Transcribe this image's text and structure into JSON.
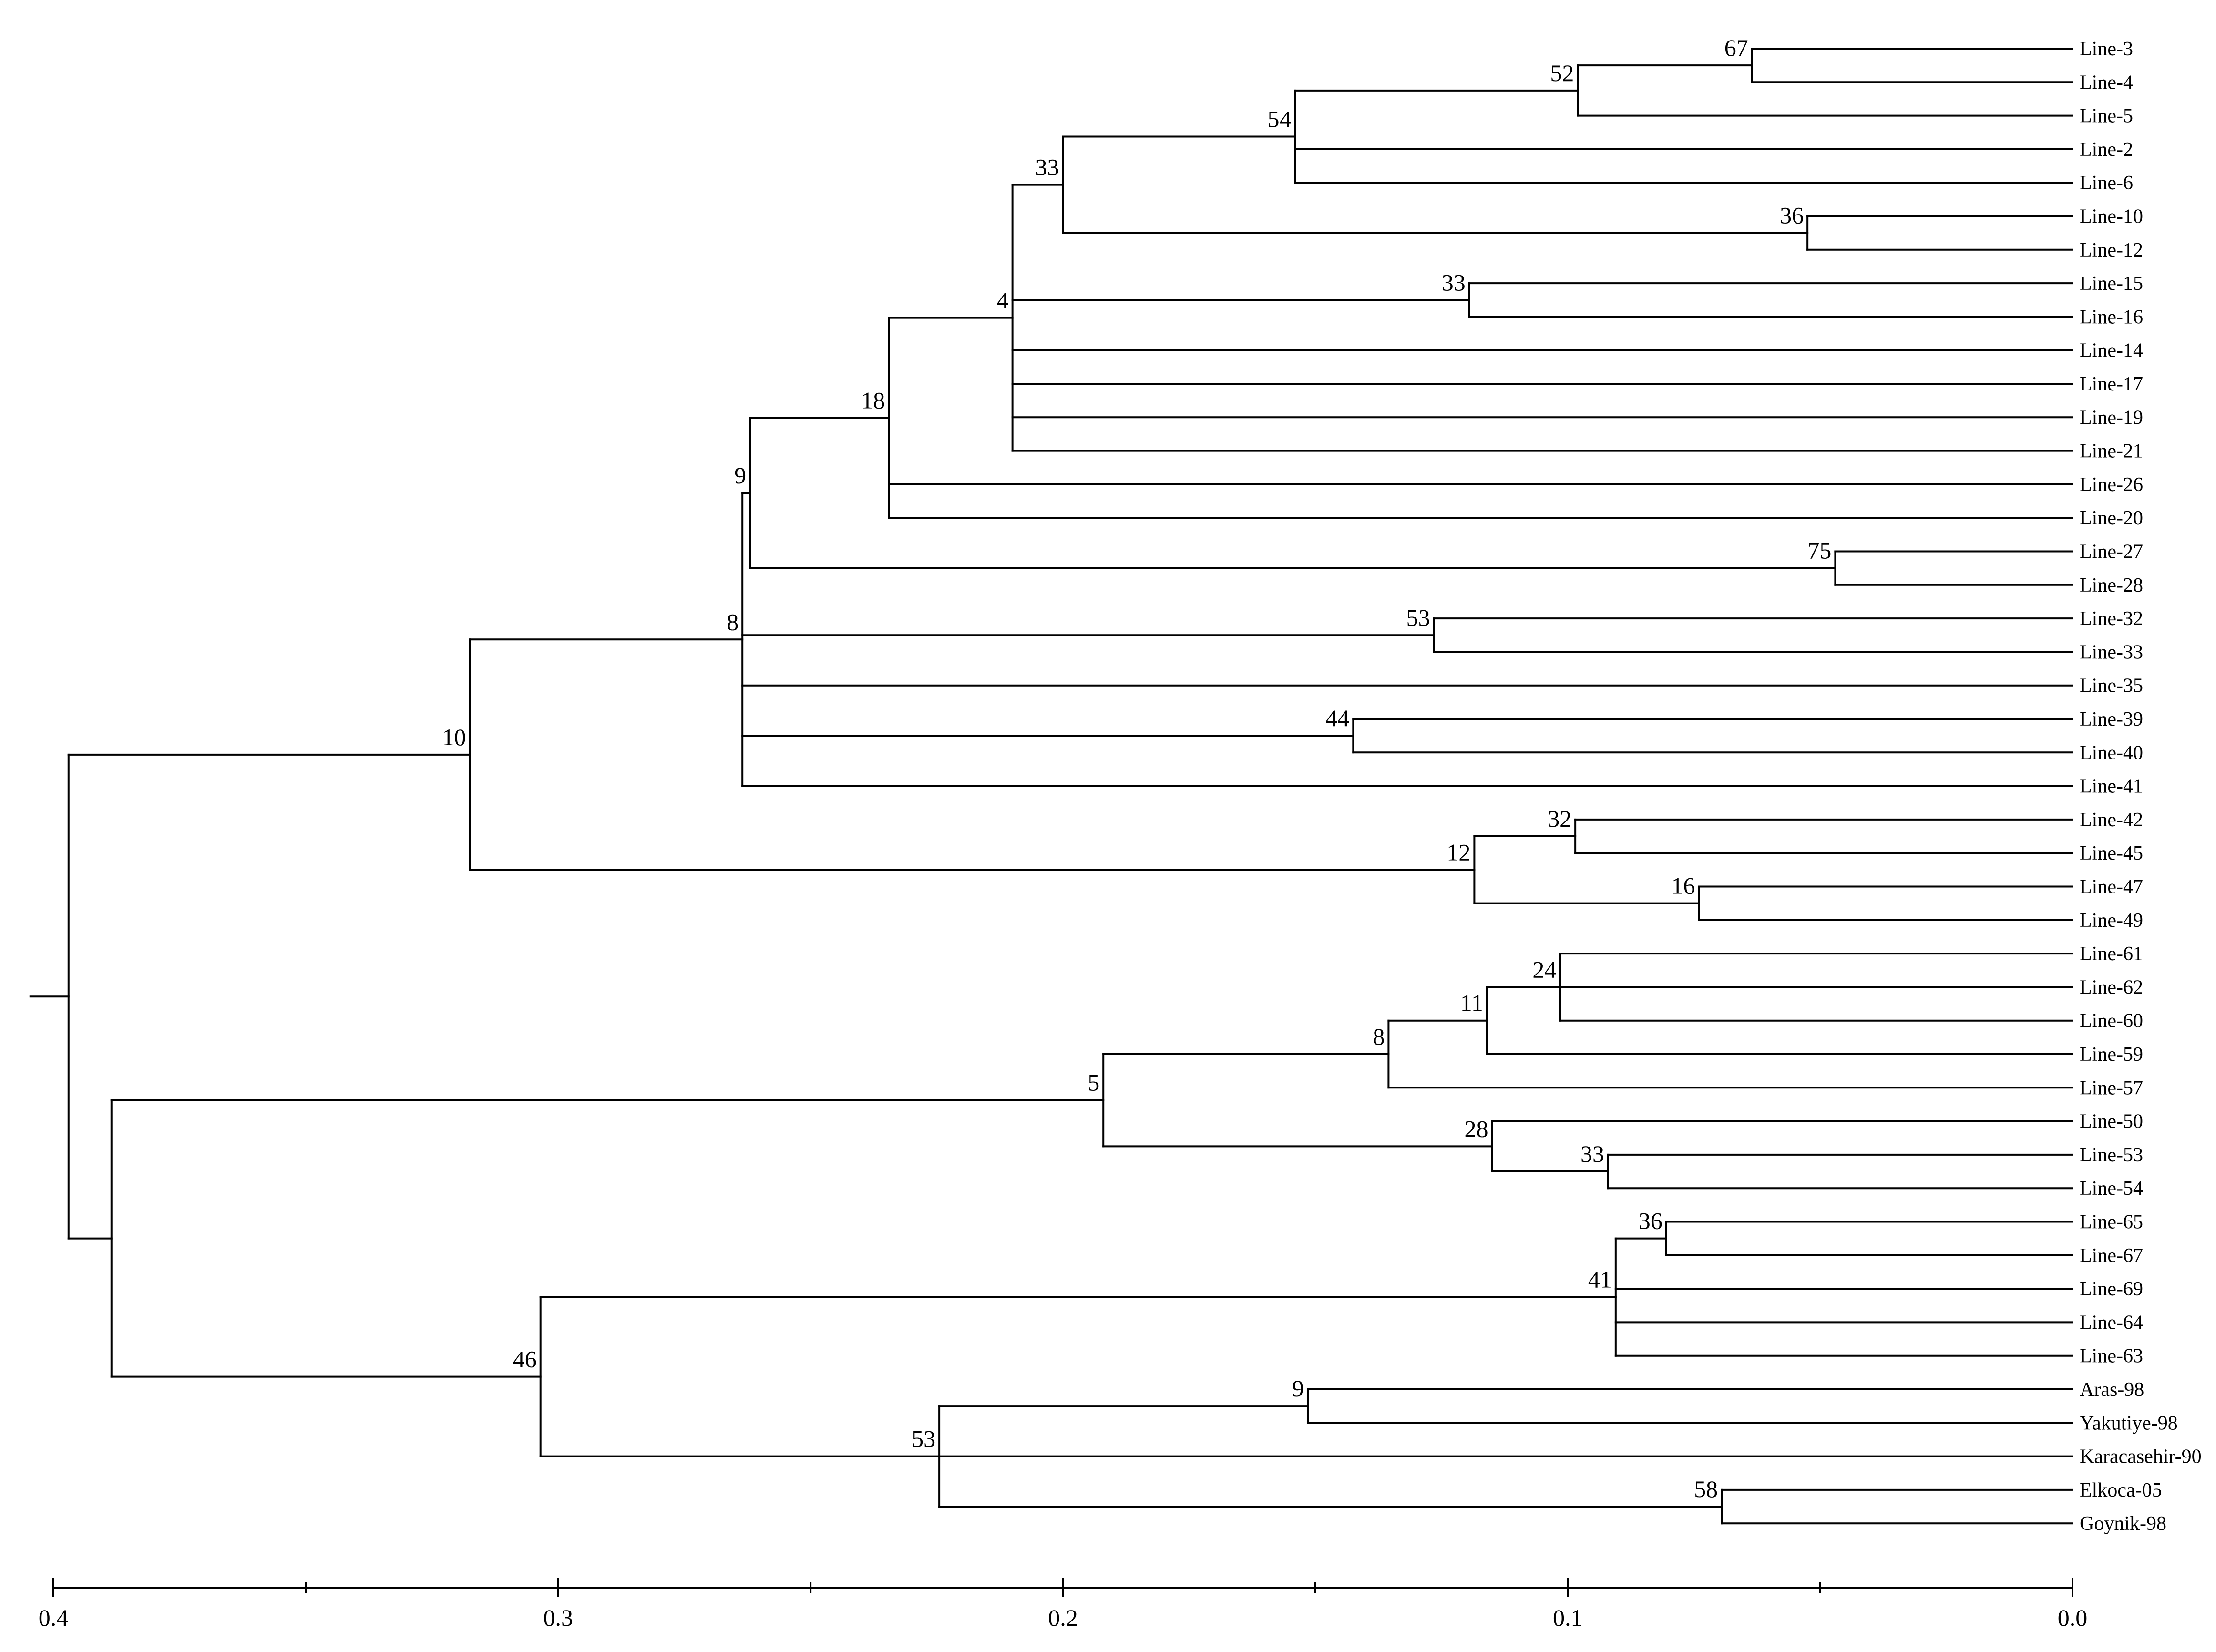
{
  "leaves": [
    "Line-3",
    "Line-4",
    "Line-5",
    "Line-2",
    "Line-6",
    "Line-10",
    "Line-12",
    "Line-15",
    "Line-16",
    "Line-14",
    "Line-17",
    "Line-19",
    "Line-21",
    "Line-26",
    "Line-20",
    "Line-27",
    "Line-28",
    "Line-32",
    "Line-33",
    "Line-35",
    "Line-39",
    "Line-40",
    "Line-41",
    "Line-42",
    "Line-45",
    "Line-47",
    "Line-49",
    "Line-61",
    "Line-62",
    "Line-60",
    "Line-59",
    "Line-57",
    "Line-50",
    "Line-53",
    "Line-54",
    "Line-65",
    "Line-67",
    "Line-69",
    "Line-64",
    "Line-63",
    "Aras-98",
    "Yakutiye-98",
    "Karacasehir-90",
    "Elkoca-05",
    "Goynik-98"
  ],
  "nodes": {
    "A": {
      "h": 0.0635,
      "boot": "67",
      "children": [
        0,
        1
      ]
    },
    "B": {
      "h": 0.098,
      "boot": "52",
      "children": [
        "A",
        2
      ]
    },
    "C": {
      "h": 0.154,
      "boot": "54",
      "children": [
        "B",
        3,
        4
      ]
    },
    "D": {
      "h": 0.0525,
      "boot": "36",
      "children": [
        5,
        6
      ]
    },
    "E": {
      "h": 0.2,
      "boot": "33",
      "children": [
        "C",
        "D"
      ]
    },
    "F": {
      "h": 0.1195,
      "boot": "33",
      "children": [
        7,
        8
      ]
    },
    "G": {
      "h": 0.21,
      "boot": "4",
      "children": [
        "E",
        "F",
        9,
        10,
        11,
        12
      ]
    },
    "H": {
      "h": 0.2345,
      "boot": "18",
      "children": [
        "G",
        13,
        14
      ]
    },
    "I": {
      "h": 0.047,
      "boot": "75",
      "children": [
        15,
        16
      ]
    },
    "J": {
      "h": 0.262,
      "boot": "9",
      "children": [
        "H",
        "I"
      ]
    },
    "K": {
      "h": 0.1265,
      "boot": "53",
      "children": [
        17,
        18
      ]
    },
    "L": {
      "h": 0.1425,
      "boot": "44",
      "children": [
        20,
        21
      ]
    },
    "M": {
      "h": 0.2635,
      "boot": "8",
      "children": [
        "J",
        "K",
        19,
        "L",
        22
      ]
    },
    "N": {
      "h": 0.0985,
      "boot": "32",
      "children": [
        23,
        24
      ]
    },
    "O": {
      "h": 0.074,
      "boot": "16",
      "children": [
        25,
        26
      ]
    },
    "P": {
      "h": 0.1185,
      "boot": "12",
      "children": [
        "N",
        "O"
      ]
    },
    "Q": {
      "h": 0.3175,
      "boot": "10",
      "children": [
        "M",
        "P"
      ]
    },
    "R": {
      "h": 0.1015,
      "boot": "24",
      "children": [
        27,
        28,
        29
      ]
    },
    "S": {
      "h": 0.116,
      "boot": "11",
      "children": [
        "R",
        30
      ]
    },
    "T": {
      "h": 0.1355,
      "boot": "8",
      "children": [
        "S",
        31
      ]
    },
    "U": {
      "h": 0.092,
      "boot": "33",
      "children": [
        33,
        34
      ]
    },
    "V": {
      "h": 0.115,
      "boot": "28",
      "children": [
        32,
        "U"
      ]
    },
    "W": {
      "h": 0.192,
      "boot": "5",
      "children": [
        "T",
        "V"
      ]
    },
    "X": {
      "h": 0.0805,
      "boot": "36",
      "children": [
        35,
        36
      ]
    },
    "Y": {
      "h": 0.0905,
      "boot": "41",
      "children": [
        "X",
        37,
        38,
        39
      ]
    },
    "Z": {
      "h": 0.1515,
      "boot": "9",
      "children": [
        40,
        41
      ]
    },
    "AA": {
      "h": 0.0695,
      "boot": "58",
      "children": [
        43,
        44
      ]
    },
    "AB": {
      "h": 0.2245,
      "boot": "53",
      "children": [
        "Z",
        42,
        "AA"
      ]
    },
    "AC": {
      "h": 0.3035,
      "boot": "46",
      "children": [
        "Y",
        "AB"
      ]
    },
    "AD": {
      "h": 0.3885,
      "boot": "",
      "children": [
        "W",
        "AC"
      ]
    },
    "ROOT": {
      "h": 0.397,
      "boot": "",
      "children": [
        "Q",
        "AD"
      ]
    }
  },
  "axis": {
    "min": 0.0,
    "max": 0.4,
    "ticks": [
      0.4,
      0.3,
      0.2,
      0.1,
      0.0
    ],
    "tick_labels": [
      "0.4",
      "0.3",
      "0.2",
      "0.1",
      "0.0"
    ]
  }
}
